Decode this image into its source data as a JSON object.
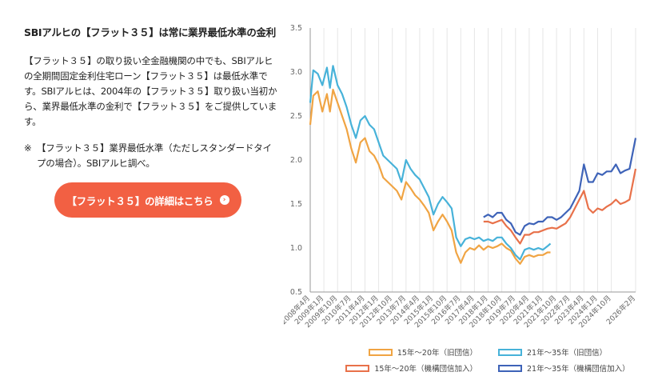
{
  "text": {
    "title": "SBIアルヒの【フラット３５】は常に業界最低水準の金利",
    "body": "【フラット３５】の取り扱い全金融機関の中でも、SBIアルヒの全期間固定金利住宅ローン【フラット３５】は最低水準です。SBIアルヒは、2004年の【フラット３５】取り扱い当初から、業界最低水準の金利で【フラット３５】をご提供しています。",
    "note_mark": "※",
    "note": "【フラット３５】業界最低水準（ただしスタンダードタイプの場合）。SBIアルヒ調べ。",
    "cta_label": "【フラット３５】の詳細はこちら",
    "cta_arrow": "›"
  },
  "chart_data": {
    "type": "line",
    "ylim": [
      0.5,
      3.5
    ],
    "y_ticks": [
      "0.5",
      "1.0",
      "1.5",
      "2.0",
      "2.5",
      "3.0",
      "3.5"
    ],
    "x_ticks": [
      "2008年4月",
      "2009年1月",
      "2009年10月",
      "2010年7月",
      "2011年4月",
      "2012年1月",
      "2012年10月",
      "2013年7月",
      "2014年4月",
      "2015年1月",
      "2015年10月",
      "2016年7月",
      "2017年4月",
      "2018年1月",
      "2018年10月",
      "2019年7月",
      "2020年4月",
      "2021年1月",
      "2021年10月",
      "2022年7月",
      "2023年4月",
      "2024年1月",
      "2024年10月",
      "2026年2月"
    ],
    "grid": "vertical",
    "legend_position": "bottom",
    "series": [
      {
        "name": "15年〜20年（旧団信）",
        "color": "#f0a443",
        "points": [
          [
            "2008-04",
            2.4
          ],
          [
            "2008-06",
            2.73
          ],
          [
            "2008-09",
            2.78
          ],
          [
            "2008-12",
            2.55
          ],
          [
            "2009-03",
            2.75
          ],
          [
            "2009-05",
            2.55
          ],
          [
            "2009-07",
            2.8
          ],
          [
            "2009-10",
            2.65
          ],
          [
            "2010-01",
            2.5
          ],
          [
            "2010-04",
            2.35
          ],
          [
            "2010-07",
            2.13
          ],
          [
            "2010-10",
            1.97
          ],
          [
            "2011-01",
            2.2
          ],
          [
            "2011-04",
            2.25
          ],
          [
            "2011-07",
            2.1
          ],
          [
            "2011-10",
            2.05
          ],
          [
            "2012-01",
            1.95
          ],
          [
            "2012-04",
            1.8
          ],
          [
            "2012-07",
            1.75
          ],
          [
            "2012-10",
            1.7
          ],
          [
            "2013-01",
            1.65
          ],
          [
            "2013-04",
            1.55
          ],
          [
            "2013-07",
            1.75
          ],
          [
            "2013-10",
            1.68
          ],
          [
            "2014-01",
            1.6
          ],
          [
            "2014-04",
            1.55
          ],
          [
            "2014-07",
            1.48
          ],
          [
            "2014-10",
            1.4
          ],
          [
            "2015-01",
            1.2
          ],
          [
            "2015-04",
            1.3
          ],
          [
            "2015-07",
            1.38
          ],
          [
            "2015-10",
            1.3
          ],
          [
            "2016-01",
            1.2
          ],
          [
            "2016-04",
            0.95
          ],
          [
            "2016-07",
            0.83
          ],
          [
            "2016-10",
            0.95
          ],
          [
            "2017-01",
            1.0
          ],
          [
            "2017-04",
            0.98
          ],
          [
            "2017-07",
            1.03
          ],
          [
            "2017-10",
            0.98
          ],
          [
            "2018-01",
            1.02
          ],
          [
            "2018-04",
            1.0
          ],
          [
            "2018-07",
            1.02
          ],
          [
            "2018-10",
            1.05
          ],
          [
            "2019-01",
            1.0
          ],
          [
            "2019-04",
            0.97
          ],
          [
            "2019-07",
            0.88
          ],
          [
            "2019-10",
            0.82
          ],
          [
            "2020-01",
            0.9
          ],
          [
            "2020-04",
            0.92
          ],
          [
            "2020-07",
            0.9
          ],
          [
            "2020-10",
            0.92
          ],
          [
            "2021-01",
            0.92
          ],
          [
            "2021-04",
            0.95
          ],
          [
            "2021-06",
            0.95
          ]
        ]
      },
      {
        "name": "21年〜35年（旧団信）",
        "color": "#47b2d9",
        "points": [
          [
            "2008-04",
            2.65
          ],
          [
            "2008-06",
            3.02
          ],
          [
            "2008-09",
            2.98
          ],
          [
            "2008-12",
            2.85
          ],
          [
            "2009-03",
            3.05
          ],
          [
            "2009-05",
            2.82
          ],
          [
            "2009-07",
            3.07
          ],
          [
            "2009-10",
            2.85
          ],
          [
            "2010-01",
            2.75
          ],
          [
            "2010-04",
            2.6
          ],
          [
            "2010-07",
            2.4
          ],
          [
            "2010-10",
            2.25
          ],
          [
            "2011-01",
            2.45
          ],
          [
            "2011-04",
            2.5
          ],
          [
            "2011-07",
            2.4
          ],
          [
            "2011-10",
            2.35
          ],
          [
            "2012-01",
            2.2
          ],
          [
            "2012-04",
            2.05
          ],
          [
            "2012-07",
            2.0
          ],
          [
            "2012-10",
            1.95
          ],
          [
            "2013-01",
            1.9
          ],
          [
            "2013-04",
            1.75
          ],
          [
            "2013-07",
            2.0
          ],
          [
            "2013-10",
            1.9
          ],
          [
            "2014-01",
            1.83
          ],
          [
            "2014-04",
            1.78
          ],
          [
            "2014-07",
            1.68
          ],
          [
            "2014-10",
            1.58
          ],
          [
            "2015-01",
            1.38
          ],
          [
            "2015-04",
            1.5
          ],
          [
            "2015-07",
            1.58
          ],
          [
            "2015-10",
            1.52
          ],
          [
            "2016-01",
            1.45
          ],
          [
            "2016-04",
            1.12
          ],
          [
            "2016-07",
            1.02
          ],
          [
            "2016-10",
            1.1
          ],
          [
            "2017-01",
            1.12
          ],
          [
            "2017-04",
            1.1
          ],
          [
            "2017-07",
            1.12
          ],
          [
            "2017-10",
            1.08
          ],
          [
            "2018-01",
            1.1
          ],
          [
            "2018-04",
            1.08
          ],
          [
            "2018-07",
            1.12
          ],
          [
            "2018-10",
            1.12
          ],
          [
            "2019-01",
            1.05
          ],
          [
            "2019-04",
            1.0
          ],
          [
            "2019-07",
            0.92
          ],
          [
            "2019-10",
            0.87
          ],
          [
            "2020-01",
            0.98
          ],
          [
            "2020-04",
            1.0
          ],
          [
            "2020-07",
            0.98
          ],
          [
            "2020-10",
            1.0
          ],
          [
            "2021-01",
            0.98
          ],
          [
            "2021-04",
            1.02
          ],
          [
            "2021-06",
            1.05
          ]
        ]
      },
      {
        "name": "15年〜20年（機構団信加入）",
        "color": "#e8714a",
        "points": [
          [
            "2017-10",
            1.3
          ],
          [
            "2018-01",
            1.3
          ],
          [
            "2018-04",
            1.28
          ],
          [
            "2018-07",
            1.3
          ],
          [
            "2018-10",
            1.32
          ],
          [
            "2019-01",
            1.25
          ],
          [
            "2019-04",
            1.2
          ],
          [
            "2019-07",
            1.12
          ],
          [
            "2019-10",
            1.05
          ],
          [
            "2020-01",
            1.15
          ],
          [
            "2020-04",
            1.15
          ],
          [
            "2020-07",
            1.18
          ],
          [
            "2020-10",
            1.18
          ],
          [
            "2021-01",
            1.2
          ],
          [
            "2021-04",
            1.22
          ],
          [
            "2021-07",
            1.23
          ],
          [
            "2021-10",
            1.22
          ],
          [
            "2022-01",
            1.25
          ],
          [
            "2022-04",
            1.28
          ],
          [
            "2022-07",
            1.35
          ],
          [
            "2022-10",
            1.45
          ],
          [
            "2023-01",
            1.55
          ],
          [
            "2023-04",
            1.65
          ],
          [
            "2023-07",
            1.45
          ],
          [
            "2023-10",
            1.4
          ],
          [
            "2024-01",
            1.45
          ],
          [
            "2024-04",
            1.43
          ],
          [
            "2024-07",
            1.47
          ],
          [
            "2024-10",
            1.5
          ],
          [
            "2025-01",
            1.55
          ],
          [
            "2025-04",
            1.5
          ],
          [
            "2025-07",
            1.52
          ],
          [
            "2025-10",
            1.55
          ],
          [
            "2026-02",
            1.9
          ]
        ]
      },
      {
        "name": "21年〜35年（機構団信加入）",
        "color": "#3e63b8",
        "points": [
          [
            "2017-10",
            1.35
          ],
          [
            "2018-01",
            1.38
          ],
          [
            "2018-04",
            1.35
          ],
          [
            "2018-07",
            1.4
          ],
          [
            "2018-10",
            1.4
          ],
          [
            "2019-01",
            1.32
          ],
          [
            "2019-04",
            1.28
          ],
          [
            "2019-07",
            1.18
          ],
          [
            "2019-10",
            1.15
          ],
          [
            "2020-01",
            1.25
          ],
          [
            "2020-04",
            1.28
          ],
          [
            "2020-07",
            1.27
          ],
          [
            "2020-10",
            1.3
          ],
          [
            "2021-01",
            1.3
          ],
          [
            "2021-04",
            1.35
          ],
          [
            "2021-07",
            1.35
          ],
          [
            "2021-10",
            1.32
          ],
          [
            "2022-01",
            1.35
          ],
          [
            "2022-04",
            1.4
          ],
          [
            "2022-07",
            1.45
          ],
          [
            "2022-10",
            1.55
          ],
          [
            "2023-01",
            1.65
          ],
          [
            "2023-04",
            1.95
          ],
          [
            "2023-07",
            1.75
          ],
          [
            "2023-10",
            1.75
          ],
          [
            "2024-01",
            1.85
          ],
          [
            "2024-04",
            1.83
          ],
          [
            "2024-07",
            1.87
          ],
          [
            "2024-10",
            1.87
          ],
          [
            "2025-01",
            1.95
          ],
          [
            "2025-04",
            1.85
          ],
          [
            "2025-07",
            1.88
          ],
          [
            "2025-10",
            1.9
          ],
          [
            "2026-02",
            2.25
          ]
        ]
      }
    ]
  }
}
